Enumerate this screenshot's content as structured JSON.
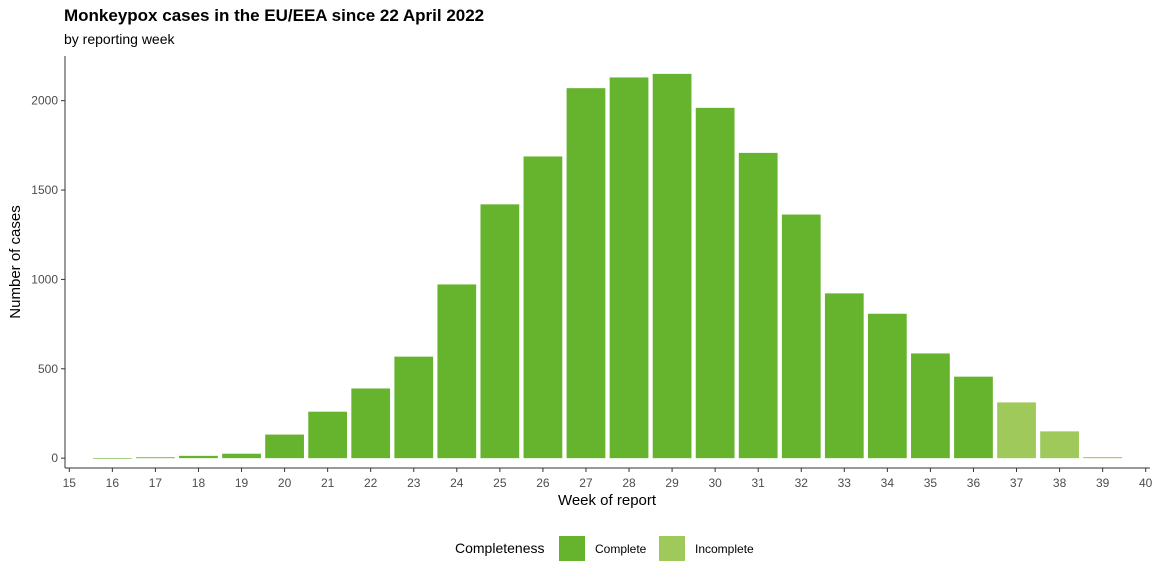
{
  "chart_data": {
    "type": "bar",
    "title": "Monkeypox cases in the EU/EEA since 22 April 2022",
    "subtitle": "by reporting week",
    "xlabel": "Week of report",
    "ylabel": "Number of cases",
    "x_ticks": [
      "15",
      "16",
      "17",
      "18",
      "19",
      "20",
      "21",
      "22",
      "23",
      "24",
      "25",
      "26",
      "27",
      "28",
      "29",
      "30",
      "31",
      "32",
      "33",
      "34",
      "35",
      "36",
      "37",
      "38",
      "39",
      "40"
    ],
    "y_ticks": [
      "0",
      "500",
      "1000",
      "1500",
      "2000"
    ],
    "xlim": [
      14.9,
      40.1
    ],
    "ylim": [
      -55,
      2250
    ],
    "legend": {
      "title": "Completeness",
      "position": "bottom",
      "entries": [
        {
          "label": "Complete",
          "color": "#66b32e"
        },
        {
          "label": "Incomplete",
          "color": "#9fc95a"
        }
      ]
    },
    "colors": {
      "Complete": "#66b32e",
      "Incomplete": "#9fc95a"
    },
    "grid": false,
    "bars": [
      {
        "week": 16,
        "value": 1,
        "completeness": "Complete"
      },
      {
        "week": 17,
        "value": 5,
        "completeness": "Complete"
      },
      {
        "week": 18,
        "value": 13,
        "completeness": "Complete"
      },
      {
        "week": 19,
        "value": 25,
        "completeness": "Complete"
      },
      {
        "week": 20,
        "value": 132,
        "completeness": "Complete"
      },
      {
        "week": 21,
        "value": 260,
        "completeness": "Complete"
      },
      {
        "week": 22,
        "value": 390,
        "completeness": "Complete"
      },
      {
        "week": 23,
        "value": 568,
        "completeness": "Complete"
      },
      {
        "week": 24,
        "value": 972,
        "completeness": "Complete"
      },
      {
        "week": 25,
        "value": 1420,
        "completeness": "Complete"
      },
      {
        "week": 26,
        "value": 1688,
        "completeness": "Complete"
      },
      {
        "week": 27,
        "value": 2070,
        "completeness": "Complete"
      },
      {
        "week": 28,
        "value": 2130,
        "completeness": "Complete"
      },
      {
        "week": 29,
        "value": 2150,
        "completeness": "Complete"
      },
      {
        "week": 30,
        "value": 1960,
        "completeness": "Complete"
      },
      {
        "week": 31,
        "value": 1708,
        "completeness": "Complete"
      },
      {
        "week": 32,
        "value": 1363,
        "completeness": "Complete"
      },
      {
        "week": 33,
        "value": 922,
        "completeness": "Complete"
      },
      {
        "week": 34,
        "value": 808,
        "completeness": "Complete"
      },
      {
        "week": 35,
        "value": 586,
        "completeness": "Complete"
      },
      {
        "week": 36,
        "value": 456,
        "completeness": "Complete"
      },
      {
        "week": 37,
        "value": 312,
        "completeness": "Incomplete"
      },
      {
        "week": 38,
        "value": 150,
        "completeness": "Incomplete"
      },
      {
        "week": 39,
        "value": 6,
        "completeness": "Incomplete"
      }
    ]
  }
}
